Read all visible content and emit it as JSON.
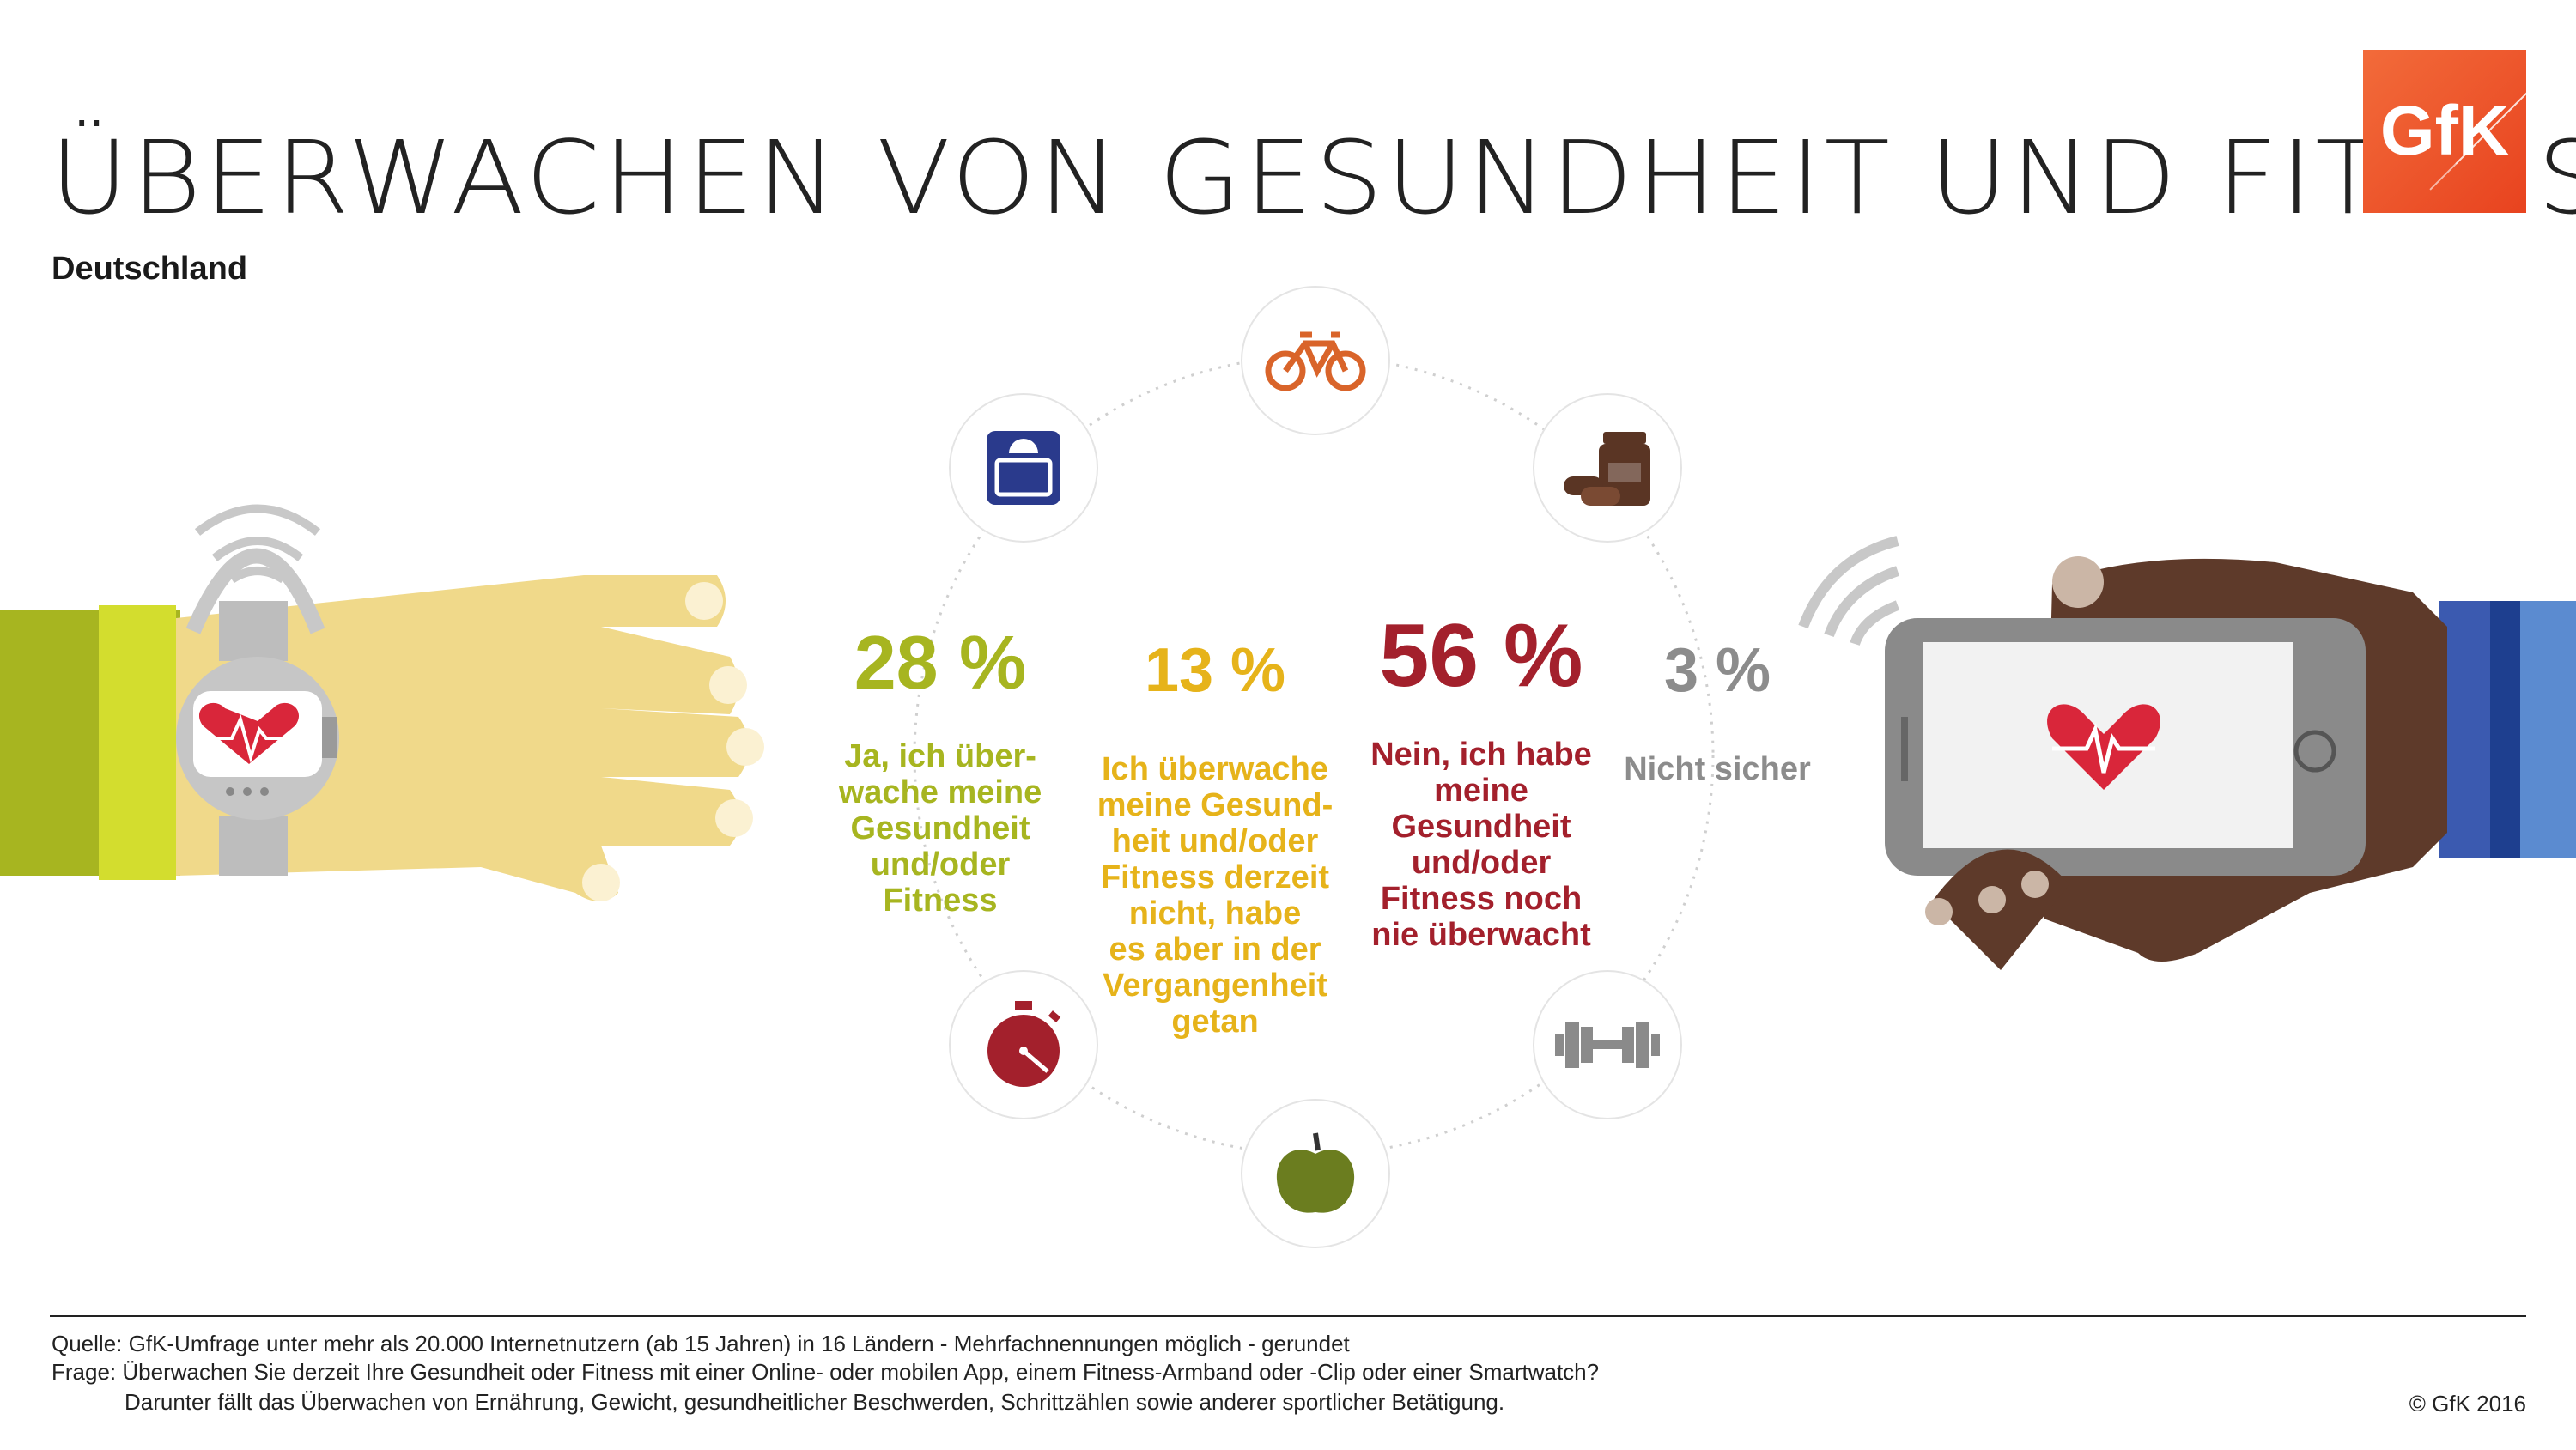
{
  "header": {
    "title": "ÜBERWACHEN VON GESUNDHEIT UND FITNESS",
    "subtitle": "Deutschland",
    "logo_text": "GfK"
  },
  "icons": [
    "bicycle-icon",
    "scale-icon",
    "supplements-icon",
    "stopwatch-icon",
    "apple-icon",
    "dumbbell-icon"
  ],
  "results": [
    {
      "value": "28 %",
      "label": "Ja, ich über-\nwache meine\nGesundheit\nund/oder\nFitness",
      "color": "#a7b520"
    },
    {
      "value": "13 %",
      "label": "Ich überwache\nmeine Gesund-\nheit und/oder\nFitness derzeit\nnicht, habe\nes aber in der\nVergangenheit\ngetan",
      "color": "#e6b31a"
    },
    {
      "value": "56 %",
      "label": "Nein, ich habe\nmeine\nGesundheit\nund/oder\nFitness noch\nnie überwacht",
      "color": "#a3202c"
    },
    {
      "value": "3 %",
      "label": "Nicht sicher",
      "color": "#8c8c8c"
    }
  ],
  "footer": {
    "source": "Quelle: GfK-Umfrage unter mehr als 20.000 Internetnutzern (ab 15 Jahren) in 16 Ländern - Mehrfachnennungen möglich - gerundet",
    "question": "Frage: Überwachen Sie derzeit Ihre Gesundheit oder Fitness mit einer Online- oder mobilen App, einem Fitness-Armband  oder -Clip oder einer Smartwatch?",
    "note": "Darunter fällt das Überwachen von Ernährung, Gewicht, gesundheitlicher Beschwerden, Schrittzählen sowie anderer sportlicher Betätigung.",
    "copyright": "© GfK 2016"
  }
}
